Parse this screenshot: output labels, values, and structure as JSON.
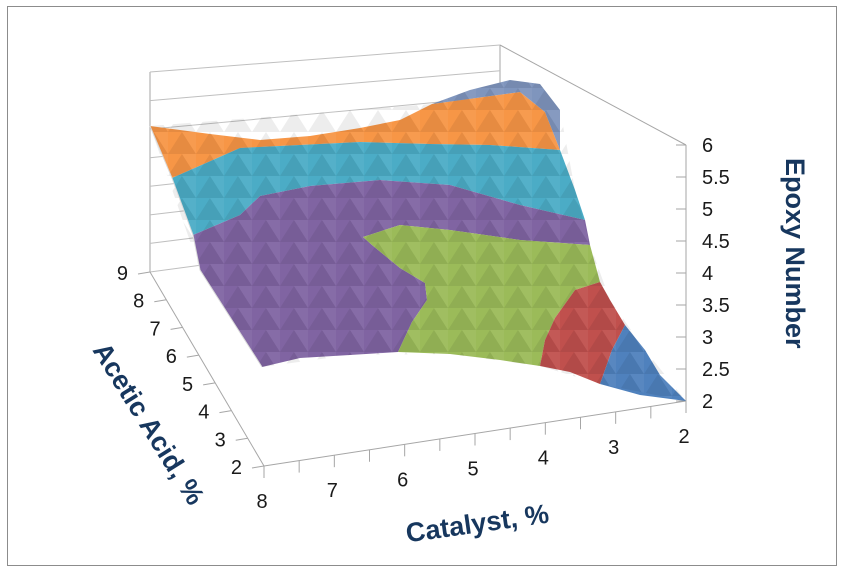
{
  "chart_data": {
    "type": "surface",
    "title": "",
    "xlabel": "Catalyst, %",
    "ylabel": "Acetic Acid, %",
    "zlabel": "Epoxy Number",
    "x_ticks": [
      "8",
      "7",
      "6",
      "5",
      "4",
      "3",
      "2"
    ],
    "y_ticks": [
      "2",
      "3",
      "4",
      "5",
      "6",
      "7",
      "8",
      "9"
    ],
    "z_ticks": [
      "2",
      "2.5",
      "3",
      "3.5",
      "4",
      "4.5",
      "5",
      "5.5",
      "6"
    ],
    "xlim": [
      2,
      8
    ],
    "ylim": [
      2,
      9
    ],
    "zlim": [
      2,
      6
    ],
    "legend": "none",
    "band_colors": {
      "2-2.5": "#4f81bd",
      "2.5-3": "#c0504d",
      "3-3.5": "#9bbb59",
      "3.5-4": "#9bbb59",
      "4-4.5": "#8064a2",
      "4.5-5": "#4bacc6",
      "5-5.5": "#f79646",
      "5.5-6": "#7f95bd"
    }
  }
}
